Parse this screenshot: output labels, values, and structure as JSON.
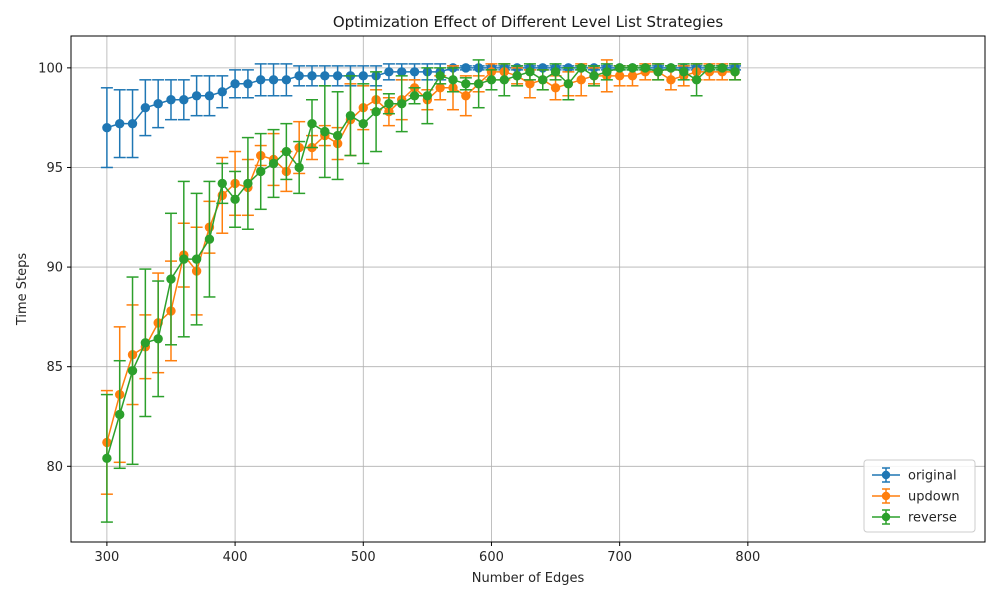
{
  "chart_data": {
    "type": "line",
    "title": "Optimization Effect of Different Level List Strategies",
    "xlabel": "Number of Edges",
    "ylabel": "Time Steps",
    "xlim": [
      272,
      985
    ],
    "ylim": [
      76.2,
      101.6
    ],
    "xticks": [
      300,
      400,
      500,
      600,
      700,
      800
    ],
    "yticks": [
      80,
      85,
      90,
      95,
      100
    ],
    "grid": true,
    "legend_position": "bottom-right",
    "error_bars": true,
    "x": [
      300,
      310,
      320,
      330,
      340,
      350,
      360,
      370,
      380,
      390,
      400,
      410,
      420,
      430,
      440,
      450,
      460,
      470,
      480,
      490,
      500,
      510,
      520,
      530,
      540,
      550,
      560,
      570,
      580,
      590,
      600,
      610,
      620,
      630,
      640,
      650,
      660,
      670,
      680,
      690,
      700,
      710,
      720,
      730,
      740,
      750,
      760,
      770,
      780,
      790
    ],
    "series": [
      {
        "name": "original",
        "color": "#1f77b4",
        "values": [
          97.0,
          97.2,
          97.2,
          98.0,
          98.2,
          98.4,
          98.4,
          98.6,
          98.6,
          98.8,
          99.2,
          99.2,
          99.4,
          99.4,
          99.4,
          99.6,
          99.6,
          99.6,
          99.6,
          99.6,
          99.6,
          99.6,
          99.8,
          99.8,
          99.8,
          99.8,
          99.8,
          100.0,
          100.0,
          100.0,
          100.0,
          100.0,
          100.0,
          100.0,
          100.0,
          100.0,
          100.0,
          100.0,
          100.0,
          100.0,
          100.0,
          100.0,
          100.0,
          100.0,
          100.0,
          100.0,
          100.0,
          100.0,
          100.0,
          100.0
        ],
        "errors": [
          2.0,
          1.7,
          1.7,
          1.4,
          1.2,
          1.0,
          1.0,
          1.0,
          1.0,
          0.8,
          0.7,
          0.7,
          0.8,
          0.8,
          0.8,
          0.5,
          0.5,
          0.5,
          0.5,
          0.5,
          0.5,
          0.5,
          0.4,
          0.4,
          0.4,
          0.4,
          0.4,
          0.1,
          0.1,
          0.1,
          0.1,
          0.1,
          0.1,
          0.1,
          0.1,
          0.1,
          0.1,
          0.1,
          0.1,
          0.1,
          0.1,
          0.1,
          0.1,
          0.1,
          0.1,
          0.1,
          0.1,
          0.1,
          0.1,
          0.1
        ]
      },
      {
        "name": "updown",
        "color": "#ff7f0e",
        "values": [
          81.2,
          83.6,
          85.6,
          86.0,
          87.2,
          87.8,
          90.6,
          89.8,
          92.0,
          93.6,
          94.2,
          94.0,
          95.6,
          95.4,
          94.8,
          96.0,
          96.0,
          96.6,
          96.2,
          97.4,
          98.0,
          98.4,
          97.8,
          98.4,
          99.0,
          98.4,
          99.0,
          99.0,
          98.6,
          99.2,
          99.8,
          99.8,
          99.6,
          99.2,
          99.4,
          99.0,
          99.2,
          99.4,
          99.6,
          99.6,
          99.6,
          99.6,
          99.8,
          99.8,
          99.4,
          99.6,
          99.8,
          99.8,
          99.8,
          99.8
        ],
        "errors": [
          2.6,
          3.4,
          2.5,
          1.6,
          2.5,
          2.5,
          1.6,
          2.2,
          1.3,
          1.9,
          1.6,
          1.4,
          0.5,
          1.3,
          1.0,
          1.3,
          0.6,
          0.5,
          0.8,
          1.8,
          1.1,
          0.5,
          0.7,
          1.0,
          0.4,
          0.5,
          0.6,
          1.1,
          1.0,
          0.4,
          0.4,
          0.4,
          0.4,
          0.7,
          0.5,
          0.6,
          0.6,
          0.8,
          0.4,
          0.8,
          0.5,
          0.5,
          0.4,
          0.4,
          0.5,
          0.5,
          0.4,
          0.4,
          0.4,
          0.4
        ]
      },
      {
        "name": "reverse",
        "color": "#2ca02c",
        "values": [
          80.4,
          82.6,
          84.8,
          86.2,
          86.4,
          89.4,
          90.4,
          90.4,
          91.4,
          94.2,
          93.4,
          94.2,
          94.8,
          95.2,
          95.8,
          95.0,
          97.2,
          96.8,
          96.6,
          97.6,
          97.2,
          97.8,
          98.2,
          98.2,
          98.6,
          98.6,
          99.6,
          99.4,
          99.2,
          99.2,
          99.4,
          99.4,
          99.6,
          99.8,
          99.4,
          99.8,
          99.2,
          100.0,
          99.6,
          99.8,
          100.0,
          100.0,
          100.0,
          99.8,
          100.0,
          99.8,
          99.4,
          100.0,
          100.0,
          99.8
        ],
        "errors": [
          3.2,
          2.7,
          4.7,
          3.7,
          2.9,
          3.3,
          3.9,
          3.3,
          2.9,
          1.0,
          1.4,
          2.3,
          1.9,
          1.7,
          1.4,
          1.3,
          1.2,
          2.3,
          2.2,
          2.0,
          2.0,
          2.0,
          0.5,
          1.4,
          0.4,
          1.4,
          0.4,
          0.6,
          0.3,
          1.2,
          0.5,
          0.8,
          0.5,
          0.4,
          0.5,
          0.4,
          0.8,
          0.1,
          0.5,
          0.4,
          0.1,
          0.1,
          0.1,
          0.4,
          0.1,
          0.4,
          0.8,
          0.1,
          0.1,
          0.4
        ]
      }
    ]
  }
}
